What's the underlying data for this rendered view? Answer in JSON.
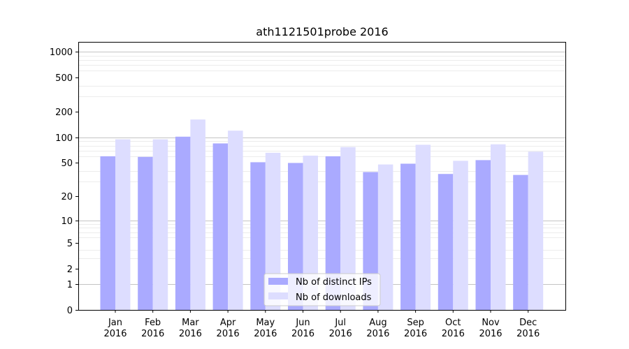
{
  "chart_data": {
    "type": "bar",
    "title": "ath1121501probe 2016",
    "xlabel": "",
    "ylabel": "",
    "y_scale": "symlog",
    "ylim": [
      0,
      1300
    ],
    "y_ticks": [
      0,
      1,
      2,
      5,
      10,
      20,
      50,
      100,
      200,
      500,
      1000
    ],
    "y_tick_labels": [
      "0",
      "1",
      "2",
      "5",
      "10",
      "20",
      "50",
      "100",
      "200",
      "500",
      "1000"
    ],
    "categories": [
      {
        "month": "Jan",
        "year": "2016"
      },
      {
        "month": "Feb",
        "year": "2016"
      },
      {
        "month": "Mar",
        "year": "2016"
      },
      {
        "month": "Apr",
        "year": "2016"
      },
      {
        "month": "May",
        "year": "2016"
      },
      {
        "month": "Jun",
        "year": "2016"
      },
      {
        "month": "Jul",
        "year": "2016"
      },
      {
        "month": "Aug",
        "year": "2016"
      },
      {
        "month": "Sep",
        "year": "2016"
      },
      {
        "month": "Oct",
        "year": "2016"
      },
      {
        "month": "Nov",
        "year": "2016"
      },
      {
        "month": "Dec",
        "year": "2016"
      }
    ],
    "series": [
      {
        "name": "Nb of distinct IPs",
        "color": "#aaaaff",
        "values": [
          60,
          59,
          102,
          85,
          51,
          50,
          60,
          39,
          49,
          37,
          54,
          36
        ]
      },
      {
        "name": "Nb of downloads",
        "color": "#ddddff",
        "values": [
          95,
          95,
          162,
          120,
          66,
          61,
          77,
          48,
          82,
          53,
          83,
          68
        ]
      }
    ],
    "grid": true,
    "legend_position": "lower-center"
  }
}
